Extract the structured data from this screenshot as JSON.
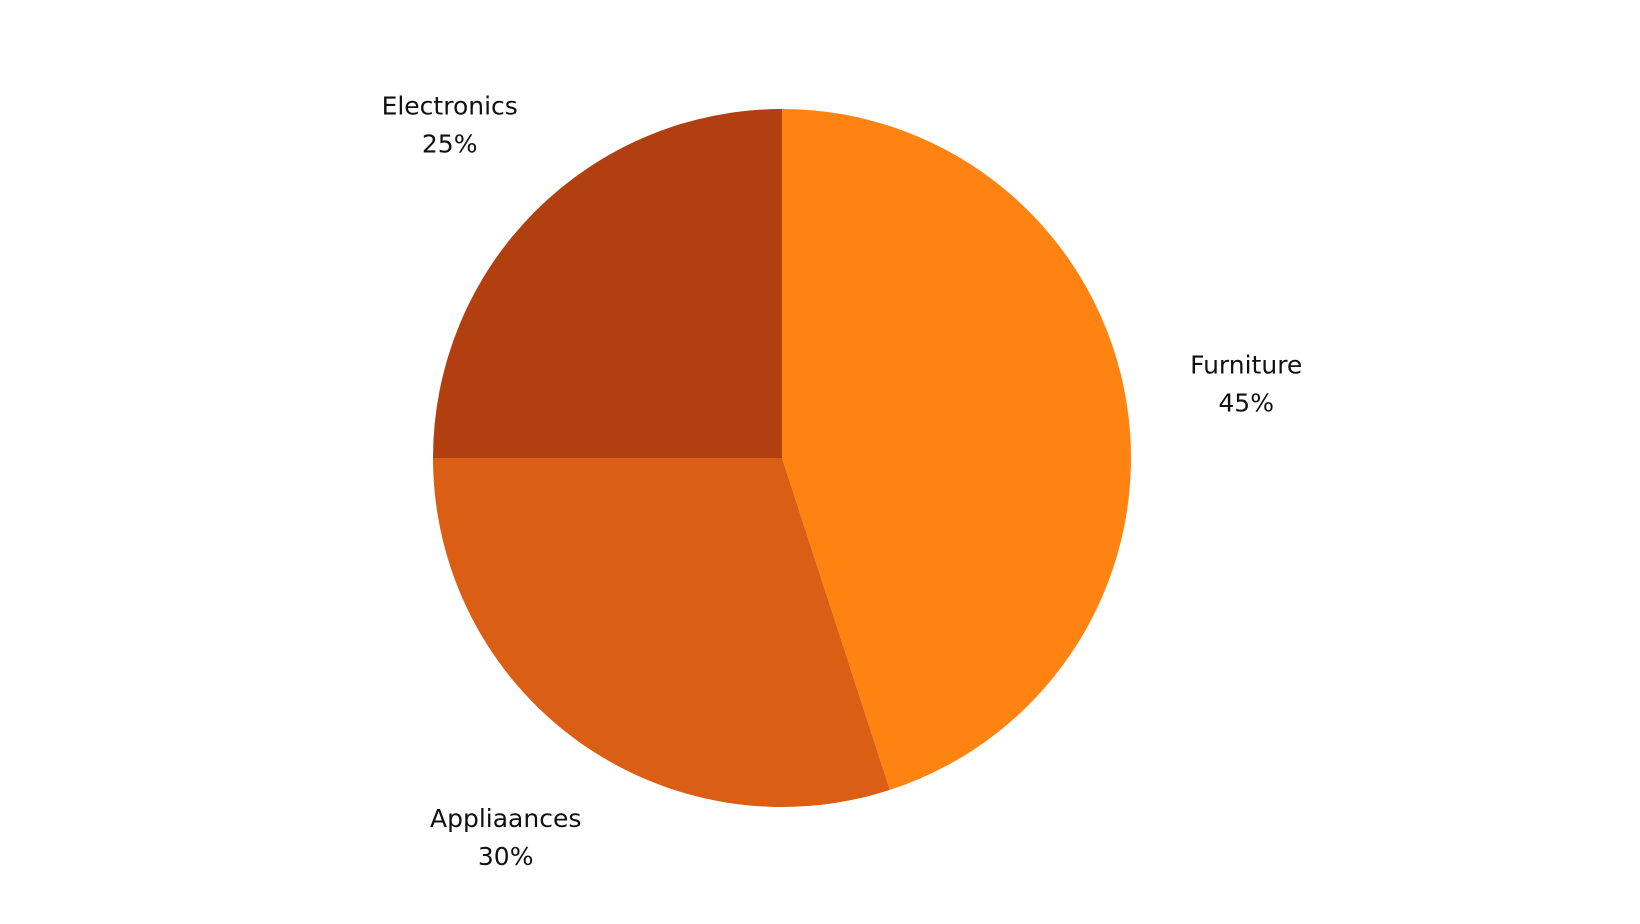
{
  "chart_data": {
    "type": "pie",
    "title": "",
    "start_angle_deg": 0,
    "direction": "clockwise",
    "slices": [
      {
        "label": "Furniture",
        "value": 45,
        "value_label": "45%",
        "color": "#FF8311"
      },
      {
        "label": "Appliaances",
        "value": 30,
        "value_label": "30%",
        "color": "#DA5F14"
      },
      {
        "label": "Electronics",
        "value": 25,
        "value_label": "25%",
        "color": "#B13F10"
      }
    ]
  }
}
